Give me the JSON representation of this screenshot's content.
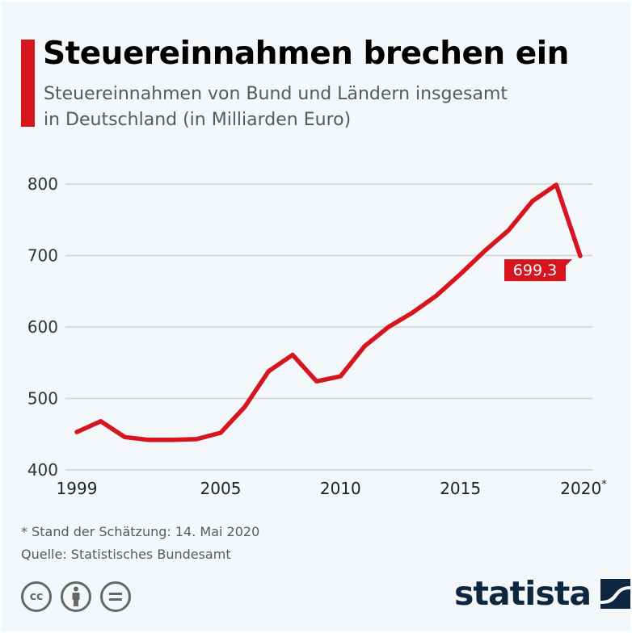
{
  "header": {
    "title": "Steuereinnahmen brechen ein",
    "subtitle_line1": "Steuereinnahmen von Bund und Ländern insgesamt",
    "subtitle_line2": "in Deutschland (in Milliarden Euro)"
  },
  "colors": {
    "accent": "#d7151f",
    "background": "#f4f7fa",
    "gridline": "#cfd3d7",
    "logo": "#0f2640"
  },
  "chart_data": {
    "type": "line",
    "title": "Steuereinnahmen brechen ein",
    "subtitle": "Steuereinnahmen von Bund und Ländern insgesamt in Deutschland (in Milliarden Euro)",
    "xlabel": "",
    "ylabel": "",
    "x": [
      1999,
      2000,
      2001,
      2002,
      2003,
      2004,
      2005,
      2006,
      2007,
      2008,
      2009,
      2010,
      2011,
      2012,
      2013,
      2014,
      2015,
      2016,
      2017,
      2018,
      2019,
      2020
    ],
    "series": [
      {
        "name": "Steuereinnahmen",
        "values": [
          453,
          468,
          446,
          442,
          442,
          443,
          452,
          488,
          538,
          561,
          524,
          531,
          573,
          600,
          620,
          644,
          674,
          706,
          735,
          776,
          799,
          699.3
        ]
      }
    ],
    "ylim": [
      400,
      800
    ],
    "yticks": [
      "400",
      "500",
      "600",
      "700",
      "800"
    ],
    "ytick_values": [
      400,
      500,
      600,
      700,
      800
    ],
    "xticks": [
      {
        "value": 1999,
        "label": "1999"
      },
      {
        "value": 2005,
        "label": "2005"
      },
      {
        "value": 2010,
        "label": "2010"
      },
      {
        "value": 2015,
        "label": "2015"
      },
      {
        "value": 2020,
        "label": "2020*"
      }
    ],
    "grid": true,
    "legend": "none",
    "annotations": [
      {
        "x": 2020,
        "y": 699.3,
        "text": "699,3"
      }
    ]
  },
  "footer": {
    "note": "* Stand der Schätzung: 14. Mai 2020",
    "source": "Quelle: Statistisches Bundesamt",
    "license_icons": [
      "cc-icon",
      "attribution-icon",
      "no-derivatives-icon"
    ],
    "license_labels": [
      "cc",
      "",
      "="
    ],
    "brand": "statista"
  }
}
